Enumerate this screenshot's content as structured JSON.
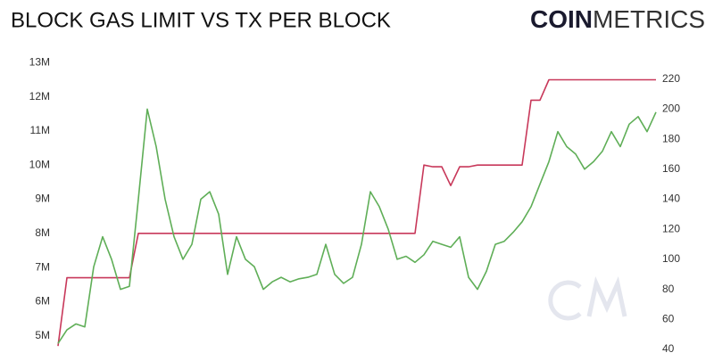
{
  "brand": {
    "bold": "COIN",
    "light": "METRICS"
  },
  "chart_data": {
    "type": "line",
    "title": "BLOCK GAS LIMIT VS TX PER BLOCK",
    "grid": false,
    "categories": [
      null,
      null,
      null,
      null,
      null,
      null,
      null,
      null,
      null,
      null,
      null,
      null,
      null,
      null,
      null,
      null,
      null,
      null,
      null,
      null,
      null,
      null,
      null,
      null,
      null,
      null,
      null,
      null,
      null,
      null,
      null,
      null,
      null,
      null,
      null,
      null,
      null,
      null,
      null,
      null,
      null,
      null,
      null,
      null,
      null,
      null,
      null,
      null,
      null,
      null,
      null,
      null,
      null,
      null,
      null,
      null,
      null,
      null,
      null,
      null,
      null,
      null,
      null,
      null,
      null,
      null,
      null,
      null
    ],
    "ylim": [
      4600000,
      13400000
    ],
    "yticks": [
      {
        "value": 5000000,
        "label": "5M"
      },
      {
        "value": 6000000,
        "label": "6M"
      },
      {
        "value": 7000000,
        "label": "7M"
      },
      {
        "value": 8000000,
        "label": "8M"
      },
      {
        "value": 9000000,
        "label": "9M"
      },
      {
        "value": 10000000,
        "label": "10M"
      },
      {
        "value": 11000000,
        "label": "11M"
      },
      {
        "value": 12000000,
        "label": "12M"
      },
      {
        "value": 13000000,
        "label": "13M"
      }
    ],
    "y2lim": [
      40,
      240
    ],
    "y2ticks": [
      40,
      60,
      80,
      100,
      120,
      140,
      160,
      180,
      200,
      220
    ],
    "series": [
      {
        "color": "#c8385a",
        "axis": "y",
        "values": [
          4700000,
          6700000,
          6700000,
          6700000,
          6700000,
          6700000,
          6700000,
          6700000,
          6700000,
          8000000,
          8000000,
          8000000,
          8000000,
          8000000,
          8000000,
          8000000,
          8000000,
          8000000,
          8000000,
          8000000,
          8000000,
          8000000,
          8000000,
          8000000,
          8000000,
          8000000,
          8000000,
          8000000,
          8000000,
          8000000,
          8000000,
          8000000,
          8000000,
          8000000,
          8000000,
          8000000,
          8000000,
          8000000,
          8000000,
          8000000,
          8000000,
          10000000,
          9950000,
          9950000,
          9400000,
          9950000,
          9950000,
          10000000,
          10000000,
          10000000,
          10000000,
          10000000,
          10000000,
          11900000,
          11900000,
          12500000,
          12500000,
          12500000,
          12500000,
          12500000,
          12500000,
          12500000,
          12500000,
          12500000,
          12500000,
          12500000,
          12500000,
          12500000
        ]
      },
      {
        "color": "#5fae57",
        "axis": "y2",
        "values": [
          44,
          53,
          57,
          55,
          95,
          115,
          100,
          80,
          82,
          140,
          200,
          175,
          140,
          115,
          100,
          110,
          140,
          145,
          130,
          90,
          115,
          100,
          95,
          80,
          85,
          88,
          85,
          87,
          88,
          90,
          110,
          90,
          84,
          88,
          110,
          145,
          135,
          120,
          100,
          102,
          98,
          103,
          112,
          110,
          108,
          115,
          88,
          80,
          92,
          110,
          112,
          118,
          125,
          135,
          150,
          165,
          185,
          175,
          170,
          160,
          165,
          172,
          185,
          175,
          190,
          195,
          185,
          198
        ]
      }
    ]
  }
}
